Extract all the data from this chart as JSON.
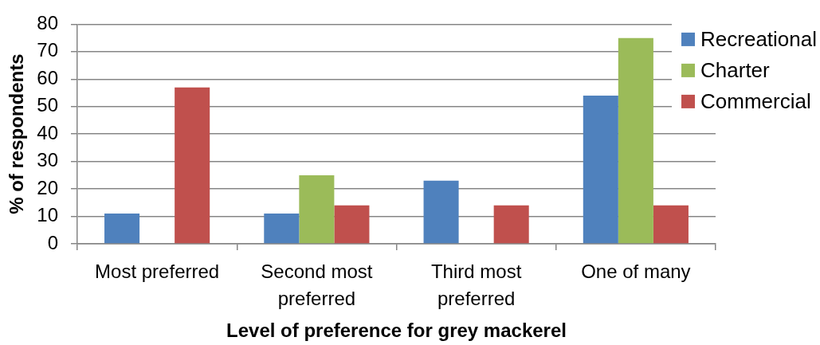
{
  "chart_data": {
    "type": "bar",
    "xlabel": "Level of preference for grey mackerel",
    "ylabel": "% of respondents",
    "categories": [
      "Most preferred",
      "Second most preferred",
      "Third most preferred",
      "One of many"
    ],
    "series": [
      {
        "name": "Recreational",
        "color": "#4f81bd",
        "values": [
          11,
          11,
          23,
          54
        ]
      },
      {
        "name": "Charter",
        "color": "#9bbb59",
        "values": [
          0,
          25,
          0,
          75
        ]
      },
      {
        "name": "Commercial",
        "color": "#c0504d",
        "values": [
          57,
          14,
          14,
          14
        ]
      }
    ],
    "ylim": [
      0,
      80
    ],
    "yticks": [
      0,
      10,
      20,
      30,
      40,
      50,
      60,
      70,
      80
    ],
    "grid": "y",
    "legend": "top right"
  }
}
